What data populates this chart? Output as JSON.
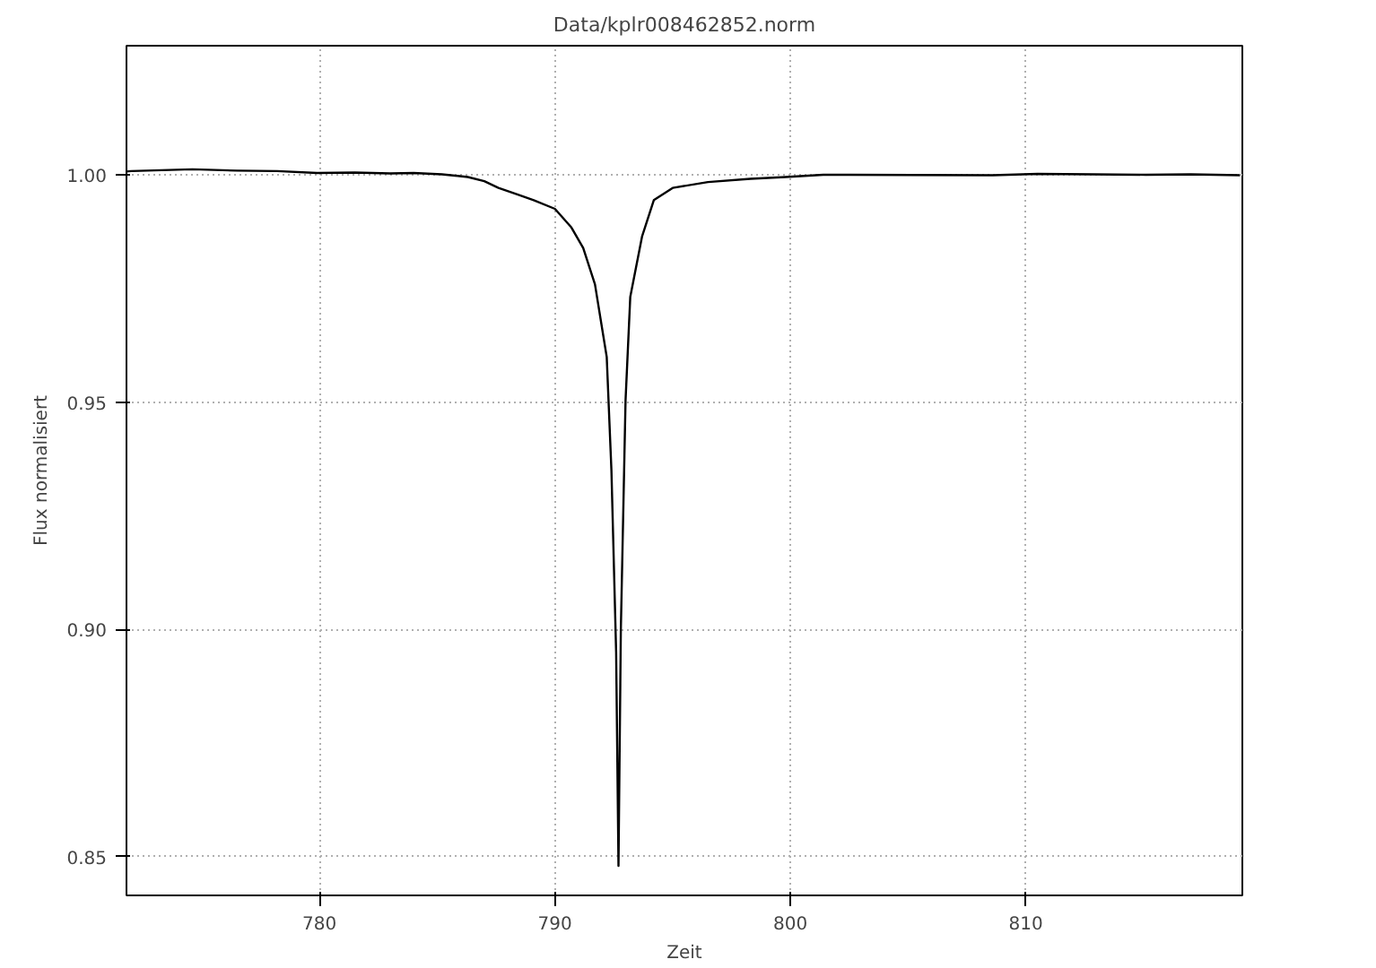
{
  "chart_data": {
    "type": "line",
    "title": "Data/kplr008462852.norm",
    "xlabel": "Zeit",
    "ylabel": "Flux normalisiert",
    "x": [
      771.8,
      772.0,
      773.3,
      774.6,
      776.5,
      778.2,
      779.9,
      781.5,
      783.0,
      784.0,
      785.2,
      786.3,
      787.0,
      787.6,
      788.4,
      789.1,
      790.0,
      790.7,
      791.2,
      791.7,
      792.2,
      792.4,
      792.6,
      792.7,
      792.8,
      793.0,
      793.2,
      793.7,
      794.2,
      795.0,
      796.5,
      798.3,
      799.8,
      801.4,
      802.5,
      808.6,
      810.5,
      812.8,
      815.1,
      817.0,
      819.1
    ],
    "series": [
      {
        "color": "#000000",
        "values": [
          1.0008,
          1.0009,
          1.0011,
          1.0013,
          1.001,
          1.0009,
          1.0005,
          1.0006,
          1.0004,
          1.0005,
          1.0002,
          0.9996,
          0.9987,
          0.9972,
          0.9958,
          0.9945,
          0.9926,
          0.9885,
          0.984,
          0.976,
          0.96,
          0.935,
          0.895,
          0.848,
          0.9,
          0.9505,
          0.9732,
          0.9865,
          0.9945,
          0.9972,
          0.9985,
          0.9992,
          0.9996,
          1.0001,
          1.0001,
          1.0,
          1.0003,
          1.0002,
          1.0001,
          1.0002,
          1.0
        ]
      }
    ],
    "xlim": [
      771.8,
      819.2
    ],
    "ylim": [
      0.8415,
      1.0285
    ],
    "xticks": [
      780,
      790,
      800,
      810
    ],
    "yticks": [
      0.85,
      {
        "value": 0.9,
        "label": "0.90"
      },
      0.95,
      {
        "value": 1.0,
        "label": "1.00"
      }
    ],
    "grid": true,
    "line_style": "solid"
  }
}
